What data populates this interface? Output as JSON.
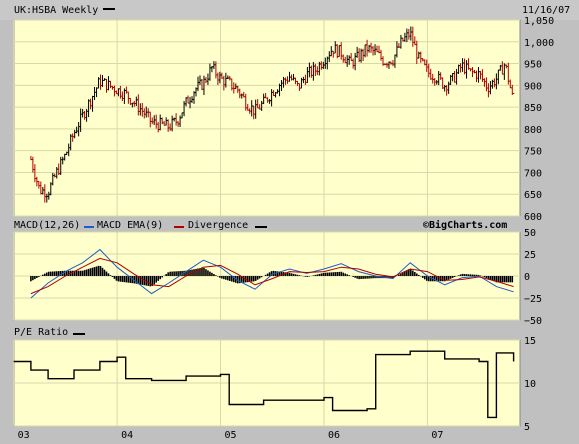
{
  "chart_data": [
    {
      "type": "ohlc",
      "title": "UK:HSBA Weekly",
      "date": "11/16/07",
      "watermark": "©BigCharts.com",
      "ylim": [
        600,
        1050
      ],
      "yticks": [
        "1,050",
        "1,000",
        "950",
        "900",
        "850",
        "800",
        "750",
        "700",
        "650",
        "600"
      ],
      "xticks": [
        "03",
        "04",
        "05",
        "06",
        "07"
      ],
      "bar_color_up": "#000000",
      "bar_color_down": "#b00000",
      "closes": [
        {
          "x": "2003-03",
          "y": 730
        },
        {
          "x": "2003-04",
          "y": 660
        },
        {
          "x": "2003-05",
          "y": 655
        },
        {
          "x": "2003-06",
          "y": 700
        },
        {
          "x": "2003-07",
          "y": 740
        },
        {
          "x": "2003-08",
          "y": 790
        },
        {
          "x": "2003-09",
          "y": 830
        },
        {
          "x": "2003-10",
          "y": 870
        },
        {
          "x": "2003-11",
          "y": 910
        },
        {
          "x": "2003-12",
          "y": 900
        },
        {
          "x": "2004-01",
          "y": 890
        },
        {
          "x": "2004-02",
          "y": 880
        },
        {
          "x": "2004-03",
          "y": 860
        },
        {
          "x": "2004-04",
          "y": 840
        },
        {
          "x": "2004-05",
          "y": 815
        },
        {
          "x": "2004-06",
          "y": 810
        },
        {
          "x": "2004-07",
          "y": 805
        },
        {
          "x": "2004-08",
          "y": 820
        },
        {
          "x": "2004-09",
          "y": 860
        },
        {
          "x": "2004-10",
          "y": 890
        },
        {
          "x": "2004-11",
          "y": 905
        },
        {
          "x": "2004-12",
          "y": 940
        },
        {
          "x": "2005-01",
          "y": 915
        },
        {
          "x": "2005-02",
          "y": 905
        },
        {
          "x": "2005-03",
          "y": 890
        },
        {
          "x": "2005-04",
          "y": 860
        },
        {
          "x": "2005-05",
          "y": 840
        },
        {
          "x": "2005-06",
          "y": 860
        },
        {
          "x": "2005-07",
          "y": 885
        },
        {
          "x": "2005-08",
          "y": 905
        },
        {
          "x": "2005-09",
          "y": 920
        },
        {
          "x": "2005-10",
          "y": 895
        },
        {
          "x": "2005-11",
          "y": 925
        },
        {
          "x": "2005-12",
          "y": 935
        },
        {
          "x": "2006-01",
          "y": 960
        },
        {
          "x": "2006-02",
          "y": 985
        },
        {
          "x": "2006-03",
          "y": 975
        },
        {
          "x": "2006-04",
          "y": 950
        },
        {
          "x": "2006-05",
          "y": 965
        },
        {
          "x": "2006-06",
          "y": 985
        },
        {
          "x": "2006-07",
          "y": 975
        },
        {
          "x": "2006-08",
          "y": 955
        },
        {
          "x": "2006-09",
          "y": 960
        },
        {
          "x": "2006-10",
          "y": 1000
        },
        {
          "x": "2006-11",
          "y": 1020
        },
        {
          "x": "2006-12",
          "y": 960
        },
        {
          "x": "2007-01",
          "y": 930
        },
        {
          "x": "2007-02",
          "y": 920
        },
        {
          "x": "2007-03",
          "y": 900
        },
        {
          "x": "2007-04",
          "y": 915
        },
        {
          "x": "2007-05",
          "y": 945
        },
        {
          "x": "2007-06",
          "y": 930
        },
        {
          "x": "2007-07",
          "y": 925
        },
        {
          "x": "2007-08",
          "y": 895
        },
        {
          "x": "2007-09",
          "y": 915
        },
        {
          "x": "2007-10",
          "y": 950
        },
        {
          "x": "2007-11",
          "y": 860
        }
      ]
    },
    {
      "type": "line",
      "title": "MACD(12,26)",
      "legend": [
        "MACD EMA(9)",
        "Divergence"
      ],
      "ylim": [
        -50,
        50
      ],
      "yticks": [
        "50",
        "25",
        "0",
        "−25",
        "−50"
      ],
      "series": [
        {
          "name": "MACD(12,26)",
          "color": "#1e5cc8",
          "points": [
            {
              "x": "2003-03",
              "y": -25
            },
            {
              "x": "2003-05",
              "y": -8
            },
            {
              "x": "2003-07",
              "y": 5
            },
            {
              "x": "2003-09",
              "y": 15
            },
            {
              "x": "2003-11",
              "y": 30
            },
            {
              "x": "2004-01",
              "y": 10
            },
            {
              "x": "2004-03",
              "y": -5
            },
            {
              "x": "2004-05",
              "y": -20
            },
            {
              "x": "2004-07",
              "y": -8
            },
            {
              "x": "2004-09",
              "y": 5
            },
            {
              "x": "2004-11",
              "y": 18
            },
            {
              "x": "2005-01",
              "y": 10
            },
            {
              "x": "2005-03",
              "y": -5
            },
            {
              "x": "2005-05",
              "y": -15
            },
            {
              "x": "2005-07",
              "y": 2
            },
            {
              "x": "2005-09",
              "y": 8
            },
            {
              "x": "2005-11",
              "y": 3
            },
            {
              "x": "2006-01",
              "y": 8
            },
            {
              "x": "2006-03",
              "y": 14
            },
            {
              "x": "2006-05",
              "y": 5
            },
            {
              "x": "2006-07",
              "y": 0
            },
            {
              "x": "2006-09",
              "y": -3
            },
            {
              "x": "2006-11",
              "y": 15
            },
            {
              "x": "2007-01",
              "y": 0
            },
            {
              "x": "2007-03",
              "y": -10
            },
            {
              "x": "2007-05",
              "y": -2
            },
            {
              "x": "2007-07",
              "y": 0
            },
            {
              "x": "2007-09",
              "y": -12
            },
            {
              "x": "2007-11",
              "y": -18
            }
          ]
        },
        {
          "name": "MACD EMA(9)",
          "color": "#b00000",
          "points": [
            {
              "x": "2003-03",
              "y": -20
            },
            {
              "x": "2003-05",
              "y": -12
            },
            {
              "x": "2003-07",
              "y": 0
            },
            {
              "x": "2003-09",
              "y": 10
            },
            {
              "x": "2003-11",
              "y": 20
            },
            {
              "x": "2004-01",
              "y": 15
            },
            {
              "x": "2004-03",
              "y": 2
            },
            {
              "x": "2004-05",
              "y": -10
            },
            {
              "x": "2004-07",
              "y": -12
            },
            {
              "x": "2004-09",
              "y": 0
            },
            {
              "x": "2004-11",
              "y": 10
            },
            {
              "x": "2005-01",
              "y": 12
            },
            {
              "x": "2005-03",
              "y": 2
            },
            {
              "x": "2005-05",
              "y": -10
            },
            {
              "x": "2005-07",
              "y": -3
            },
            {
              "x": "2005-09",
              "y": 5
            },
            {
              "x": "2005-11",
              "y": 4
            },
            {
              "x": "2006-01",
              "y": 5
            },
            {
              "x": "2006-03",
              "y": 10
            },
            {
              "x": "2006-05",
              "y": 8
            },
            {
              "x": "2006-07",
              "y": 2
            },
            {
              "x": "2006-09",
              "y": -1
            },
            {
              "x": "2006-11",
              "y": 8
            },
            {
              "x": "2007-01",
              "y": 5
            },
            {
              "x": "2007-03",
              "y": -5
            },
            {
              "x": "2007-05",
              "y": -4
            },
            {
              "x": "2007-07",
              "y": -1
            },
            {
              "x": "2007-09",
              "y": -6
            },
            {
              "x": "2007-11",
              "y": -12
            }
          ]
        }
      ]
    },
    {
      "type": "line",
      "title": "P/E Ratio",
      "ylim": [
        5,
        15
      ],
      "yticks": [
        "15",
        "10",
        "5"
      ],
      "series": [
        {
          "name": "P/E Ratio",
          "color": "#000000",
          "points": [
            {
              "x": "2003-01",
              "y": 12.5
            },
            {
              "x": "2003-03",
              "y": 11.5
            },
            {
              "x": "2003-05",
              "y": 10.5
            },
            {
              "x": "2003-08",
              "y": 11.5
            },
            {
              "x": "2003-11",
              "y": 12.5
            },
            {
              "x": "2004-01",
              "y": 13.0
            },
            {
              "x": "2004-02",
              "y": 10.5
            },
            {
              "x": "2004-05",
              "y": 10.3
            },
            {
              "x": "2004-09",
              "y": 10.8
            },
            {
              "x": "2005-01",
              "y": 11.0
            },
            {
              "x": "2005-02",
              "y": 7.5
            },
            {
              "x": "2005-06",
              "y": 8.0
            },
            {
              "x": "2006-01",
              "y": 8.3
            },
            {
              "x": "2006-02",
              "y": 6.8
            },
            {
              "x": "2006-06",
              "y": 7.0
            },
            {
              "x": "2006-07",
              "y": 13.3
            },
            {
              "x": "2006-11",
              "y": 13.7
            },
            {
              "x": "2007-03",
              "y": 12.8
            },
            {
              "x": "2007-07",
              "y": 12.5
            },
            {
              "x": "2007-08",
              "y": 6.0
            },
            {
              "x": "2007-09",
              "y": 13.5
            },
            {
              "x": "2007-11",
              "y": 12.5
            }
          ]
        }
      ]
    }
  ],
  "colors": {
    "frame": "#c0c0c0",
    "panel_bg": "#ffffcc",
    "grid": "#d8d8a8",
    "macd": "#1e5cc8",
    "signal": "#b00000"
  }
}
